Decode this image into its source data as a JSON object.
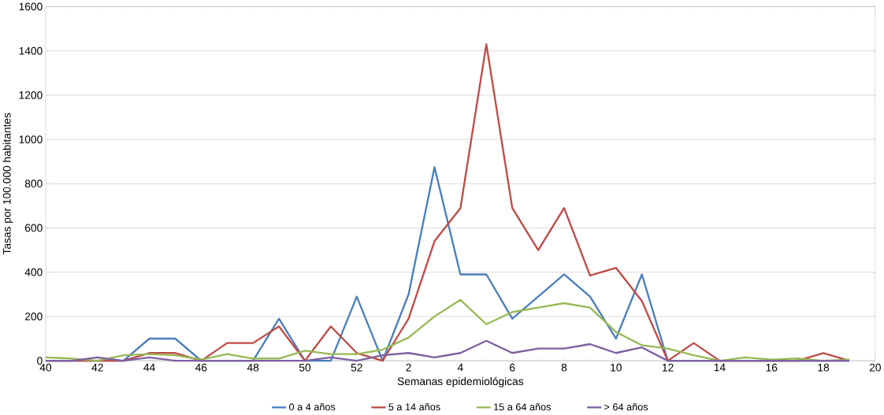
{
  "chart_data": {
    "type": "line",
    "xlabel": "Semanas epidemiológicas",
    "ylabel": "Tasas por 100.000 habitantes",
    "categories": [
      "40",
      null,
      "42",
      null,
      "44",
      null,
      "46",
      null,
      "48",
      null,
      "50",
      null,
      "52",
      null,
      "2",
      null,
      "4",
      null,
      "6",
      null,
      "8",
      null,
      "10",
      null,
      "12",
      null,
      "14",
      null,
      "16",
      null,
      "18",
      null,
      "20"
    ],
    "series": [
      {
        "name": "0 a 4 años",
        "color": "#4a7ebb",
        "values": [
          0,
          0,
          0,
          0,
          100,
          100,
          0,
          0,
          0,
          190,
          0,
          0,
          290,
          0,
          300,
          875,
          390,
          390,
          190,
          290,
          390,
          290,
          100,
          390,
          0,
          0,
          0,
          0,
          0,
          0,
          0,
          0,
          null
        ]
      },
      {
        "name": "5 a 14 años",
        "color": "#be4b48",
        "values": [
          0,
          0,
          0,
          0,
          35,
          35,
          0,
          80,
          80,
          155,
          0,
          155,
          35,
          0,
          190,
          540,
          690,
          1430,
          690,
          500,
          690,
          385,
          420,
          270,
          0,
          80,
          0,
          0,
          0,
          0,
          35,
          0,
          null
        ]
      },
      {
        "name": "15 a 64 años",
        "color": "#98b954",
        "values": [
          15,
          10,
          0,
          25,
          30,
          25,
          5,
          30,
          10,
          10,
          45,
          30,
          30,
          50,
          105,
          200,
          275,
          165,
          220,
          240,
          260,
          240,
          130,
          70,
          55,
          25,
          0,
          15,
          5,
          10,
          0,
          5,
          null
        ]
      },
      {
        "name": "> 64 años",
        "color": "#7d60a0",
        "values": [
          0,
          0,
          15,
          0,
          15,
          0,
          0,
          0,
          0,
          0,
          0,
          15,
          0,
          25,
          35,
          15,
          35,
          90,
          35,
          55,
          55,
          75,
          35,
          60,
          0,
          0,
          0,
          0,
          0,
          0,
          0,
          0,
          null
        ]
      }
    ],
    "ylim": [
      0,
      1600
    ],
    "yticks": [
      0,
      200,
      400,
      600,
      800,
      1000,
      1200,
      1400,
      1600
    ],
    "grid": "y",
    "legend": "bottom",
    "marker": "none",
    "line_style": "solid"
  }
}
